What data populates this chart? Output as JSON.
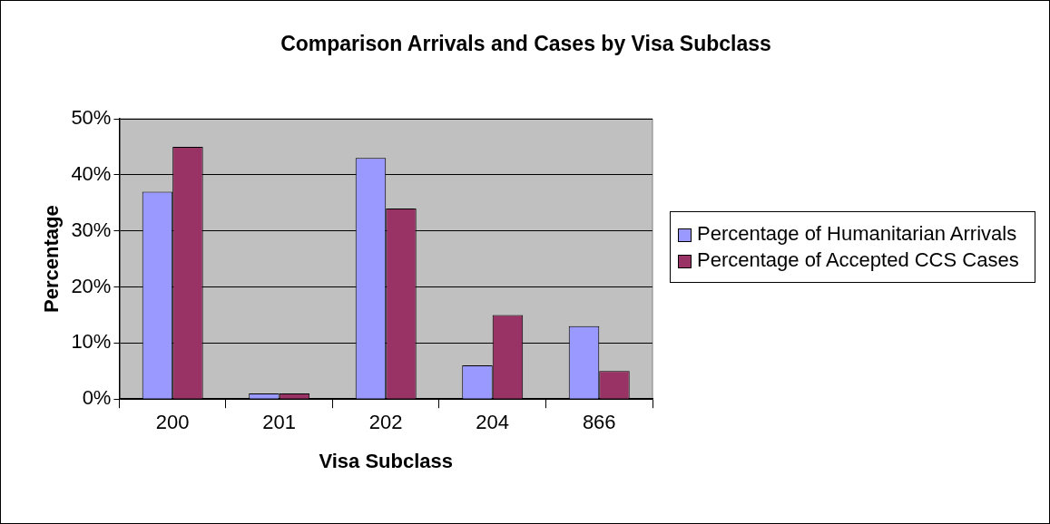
{
  "chart_data": {
    "type": "bar",
    "title": "Comparison Arrivals and Cases by Visa Subclass",
    "xlabel": "Visa Subclass",
    "ylabel": "Percentage",
    "categories": [
      "200",
      "201",
      "202",
      "204",
      "866"
    ],
    "series": [
      {
        "name": "Percentage of Humanitarian Arrivals",
        "color": "#9999ff",
        "values": [
          37,
          1,
          43,
          6,
          13
        ]
      },
      {
        "name": "Percentage of Accepted CCS Cases",
        "color": "#993366",
        "values": [
          45,
          1,
          34,
          15,
          5
        ]
      }
    ],
    "ylim": [
      0,
      50
    ],
    "yticks": [
      {
        "value": 0,
        "label": "0%"
      },
      {
        "value": 10,
        "label": "10%"
      },
      {
        "value": 20,
        "label": "20%"
      },
      {
        "value": 30,
        "label": "30%"
      },
      {
        "value": 40,
        "label": "40%"
      },
      {
        "value": 50,
        "label": "50%"
      }
    ],
    "grid": "y",
    "legend": "right"
  }
}
